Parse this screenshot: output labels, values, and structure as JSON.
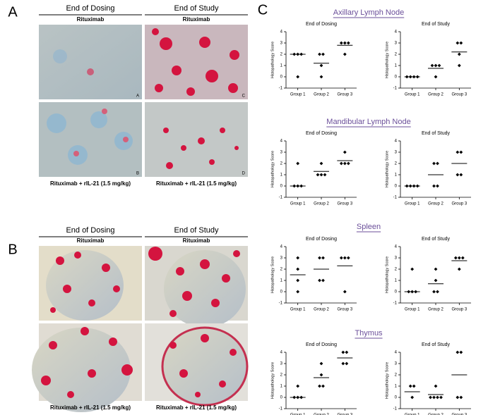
{
  "figure": {
    "panel_labels": [
      "A",
      "B",
      "C"
    ],
    "image_panels": [
      {
        "columns": [
          "End of Dosing",
          "End of Study"
        ],
        "top_row": [
          "Rituximab",
          "Rituximab"
        ],
        "bottom_row": [
          "Rituximab + rIL-21 (1.5 mg/kg)",
          "Rituximab + rIL-21 (1.5 mg/kg)"
        ],
        "image_letters": [
          "A",
          "C",
          "B",
          "D"
        ]
      },
      {
        "columns": [
          "End of Dosing",
          "End of Study"
        ],
        "top_row": [
          "Rituximab",
          "Rituximab"
        ],
        "bottom_row": [
          "Rituximab + rIL-21 (1.5 mg/kg)",
          "Rituximab + rIL-21 (1.5 mg/kg)"
        ]
      }
    ]
  },
  "sections": [
    "Axillary Lymph Node",
    "Mandibular Lymph Node",
    "Spleen",
    "Thymus"
  ],
  "chart_data": [
    {
      "type": "dot",
      "title": "End of Dosing",
      "ylabel": "Histopathology Score",
      "categories": [
        "Group 1",
        "Group 2",
        "Group 3"
      ],
      "ylim": [
        -1,
        4
      ],
      "yticks": [
        -1,
        0,
        1,
        2,
        3,
        4
      ],
      "points": [
        [
          2,
          2,
          2,
          0
        ],
        [
          2,
          2,
          1,
          0
        ],
        [
          3,
          3,
          3,
          2
        ]
      ],
      "lines": [
        2,
        1.2,
        2.8
      ]
    },
    {
      "type": "dot",
      "title": "End of Study",
      "ylabel": "Histopathology Score",
      "categories": [
        "Group 1",
        "Group 2",
        "Group 3"
      ],
      "ylim": [
        -1,
        4
      ],
      "yticks": [
        -1,
        0,
        1,
        2,
        3,
        4
      ],
      "points": [
        [
          0,
          0,
          0,
          0
        ],
        [
          1,
          1,
          1,
          0
        ],
        [
          3,
          3,
          2,
          1
        ]
      ],
      "lines": [
        0,
        0.75,
        2.2
      ]
    },
    {
      "type": "dot",
      "title": "End of Dosing",
      "ylabel": "Histopathology Score",
      "categories": [
        "Group 1",
        "Group 2",
        "Group 3"
      ],
      "ylim": [
        -1,
        4
      ],
      "yticks": [
        -1,
        0,
        1,
        2,
        3,
        4
      ],
      "points": [
        [
          2,
          0,
          0,
          0
        ],
        [
          2,
          1,
          1,
          1
        ],
        [
          3,
          2,
          2,
          2
        ]
      ],
      "lines": [
        0,
        1.3,
        2.25
      ]
    },
    {
      "type": "dot",
      "title": "End of Study",
      "ylabel": "Histopathology Score",
      "categories": [
        "Group 1",
        "Group 2",
        "Group 3"
      ],
      "ylim": [
        -1,
        4
      ],
      "yticks": [
        -1,
        0,
        1,
        2,
        3,
        4
      ],
      "points": [
        [
          0,
          0,
          0,
          0
        ],
        [
          2,
          2,
          0,
          0
        ],
        [
          3,
          3,
          1,
          1
        ]
      ],
      "lines": [
        0,
        1,
        2
      ]
    },
    {
      "type": "dot",
      "title": "End of Dosing",
      "ylabel": "Histopathology Score",
      "categories": [
        "Group 1",
        "Group 2",
        "Group 3"
      ],
      "ylim": [
        -1,
        4
      ],
      "yticks": [
        -1,
        0,
        1,
        2,
        3,
        4
      ],
      "points": [
        [
          3,
          2,
          1,
          0
        ],
        [
          3,
          3,
          1,
          1
        ],
        [
          3,
          3,
          3,
          0
        ]
      ],
      "lines": [
        1.5,
        2,
        2.3
      ]
    },
    {
      "type": "dot",
      "title": "End of Study",
      "ylabel": "Histopathology Score",
      "categories": [
        "Group 1",
        "Group 2",
        "Group 3"
      ],
      "ylim": [
        -1,
        4
      ],
      "yticks": [
        -1,
        0,
        1,
        2,
        3,
        4
      ],
      "points": [
        [
          2,
          0,
          0,
          0
        ],
        [
          2,
          1,
          0,
          0
        ],
        [
          3,
          3,
          3,
          2
        ]
      ],
      "lines": [
        0,
        0.7,
        2.75
      ]
    },
    {
      "type": "dot",
      "title": "End of Dosing",
      "ylabel": "Histopathology Score",
      "categories": [
        "Group 1",
        "Group 2",
        "Group 3"
      ],
      "ylim": [
        -1,
        4
      ],
      "yticks": [
        -1,
        0,
        1,
        2,
        3,
        4
      ],
      "points": [
        [
          1,
          0,
          0,
          0
        ],
        [
          3,
          2,
          1,
          1
        ],
        [
          4,
          4,
          3,
          3
        ]
      ],
      "lines": [
        0,
        1.75,
        3.5
      ]
    },
    {
      "type": "dot",
      "title": "End of Study",
      "ylabel": "Histopathology Score",
      "categories": [
        "Group 1",
        "Group 2",
        "Group 3"
      ],
      "ylim": [
        -1,
        4
      ],
      "yticks": [
        -1,
        0,
        1,
        2,
        3,
        4
      ],
      "points": [
        [
          1,
          1,
          0
        ],
        [
          1,
          0,
          0,
          0,
          0
        ],
        [
          4,
          4,
          0,
          0
        ]
      ],
      "lines": [
        0.5,
        0.25,
        2
      ]
    }
  ]
}
